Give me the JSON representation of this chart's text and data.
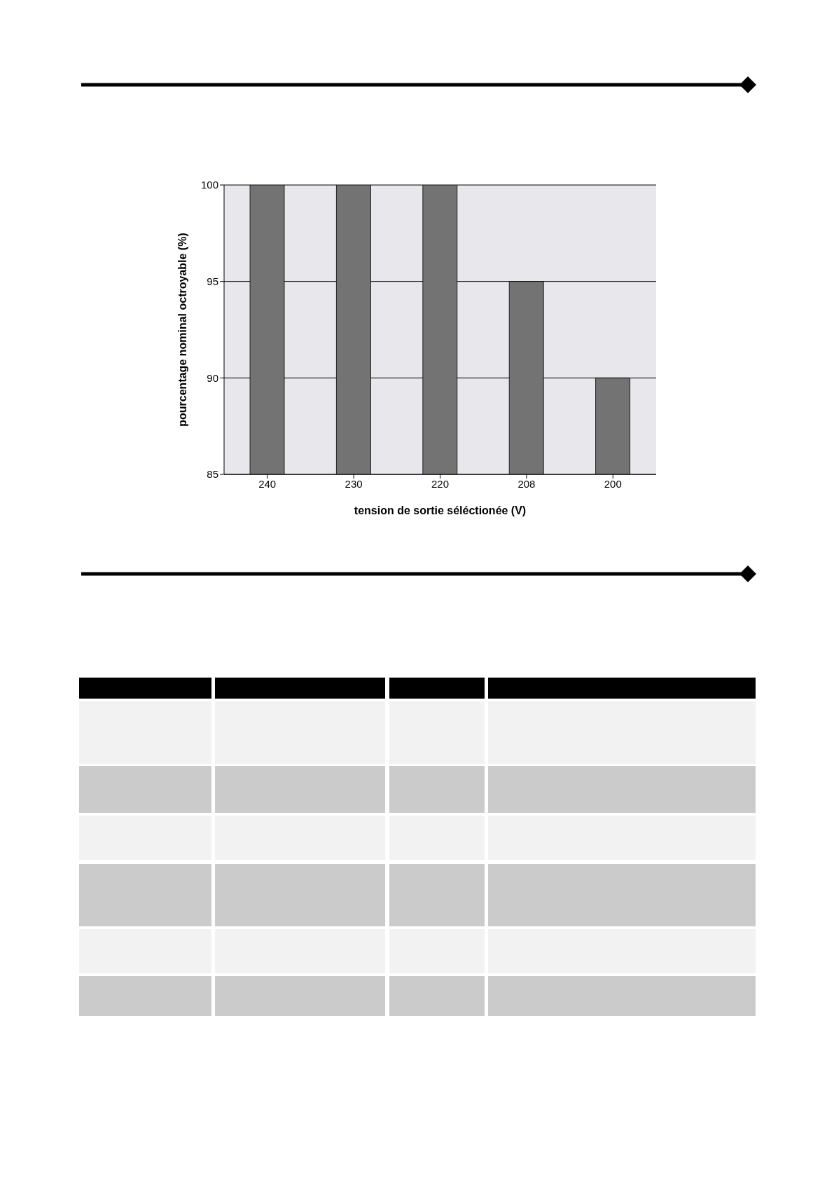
{
  "chart_data": {
    "type": "bar",
    "xlabel": "tension de sortie séléctionée (V)",
    "ylabel": "pourcentage nominal octroyable (%)",
    "categories": [
      "240",
      "230",
      "220",
      "208",
      "200"
    ],
    "values": [
      100,
      100,
      100,
      95,
      90
    ],
    "color": "#737373",
    "ylim": [
      85,
      100
    ],
    "yticks": [
      85,
      90,
      95,
      100
    ],
    "grid": "y"
  }
}
